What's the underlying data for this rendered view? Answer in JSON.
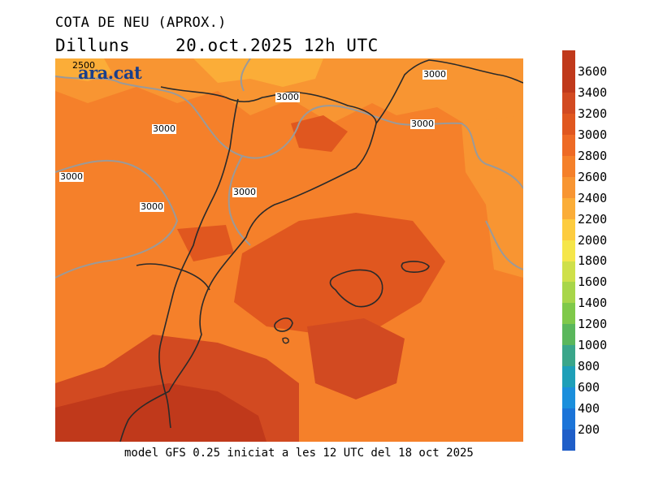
{
  "title": {
    "variable": "COTA DE NEU (APROX.)",
    "day": "Dilluns",
    "datetime": "20.oct.2025 12h UTC"
  },
  "logo": "ara.cat",
  "contour_labels": [
    "2500",
    "3000",
    "3000",
    "3000",
    "3000",
    "3000",
    "3000",
    "3000"
  ],
  "footer": "model GFS 0.25 iniciat a les 12 UTC del 18 oct 2025",
  "legend": {
    "levels": [
      "3600",
      "3400",
      "3200",
      "3000",
      "2800",
      "2600",
      "2400",
      "2200",
      "2000",
      "1800",
      "1600",
      "1400",
      "1200",
      "1000",
      "800",
      "600",
      "400",
      "200"
    ],
    "colors": [
      "#c0391b",
      "#d24a21",
      "#e0571f",
      "#ee6a25",
      "#f5802a",
      "#f89532",
      "#fbad38",
      "#fdcc3f",
      "#f5e64a",
      "#cfe04a",
      "#a8d64a",
      "#7fc94a",
      "#5ab75c",
      "#3aa68a",
      "#1e9fb8",
      "#1b8fdc",
      "#1b74d8",
      "#1f5ec8"
    ]
  }
}
